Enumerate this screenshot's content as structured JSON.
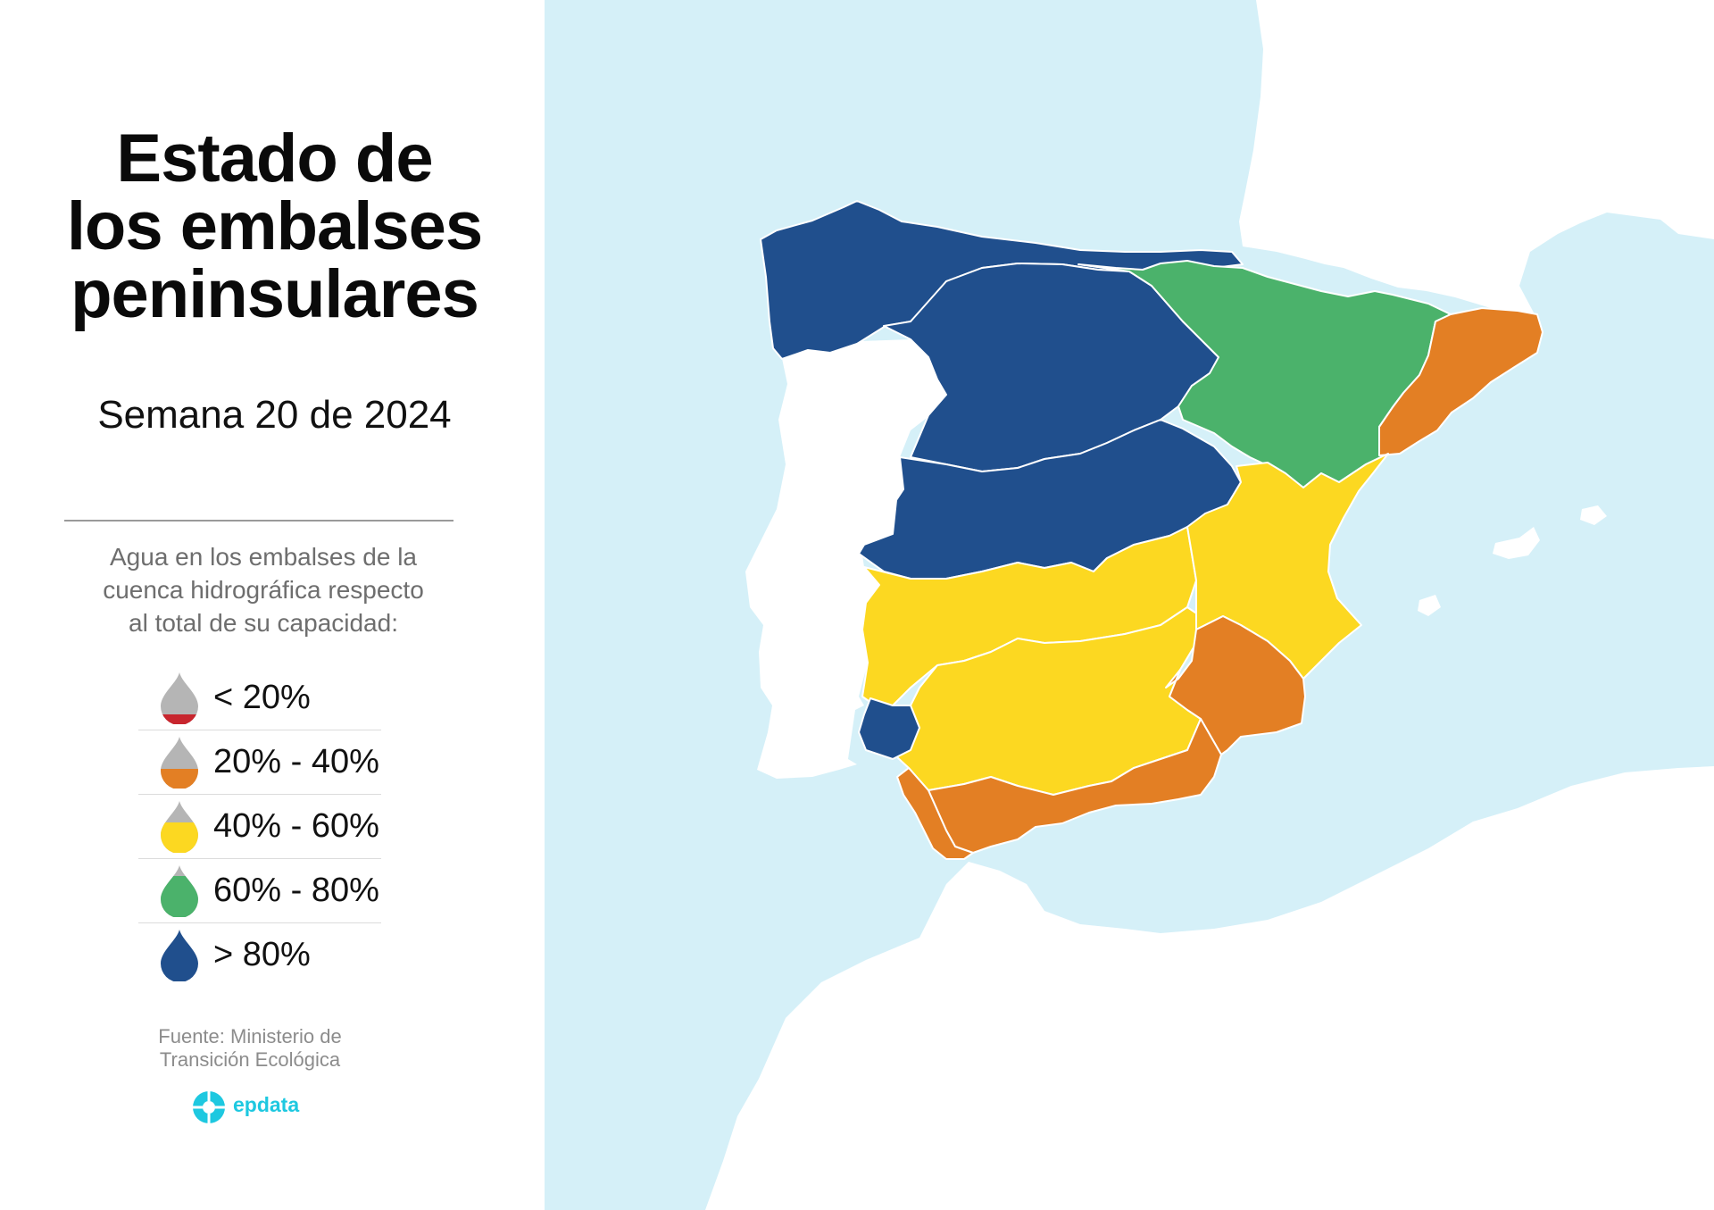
{
  "title_lines": [
    "Estado de",
    "los embalses",
    "peninsulares"
  ],
  "subtitle": "Semana 20 de 2024",
  "legend": {
    "description_lines": [
      "Agua en los embalses de la",
      "cuenca hidrográfica respecto",
      "al total de su capacidad:"
    ],
    "items": [
      {
        "label": "< 20%",
        "color": "#c8262e",
        "fill_level": 0.2
      },
      {
        "label": "20% - 40%",
        "color": "#e37f24",
        "fill_level": 0.4
      },
      {
        "label": "40% - 60%",
        "color": "#fcd821",
        "fill_level": 0.6
      },
      {
        "label": "60% - 80%",
        "color": "#4bb26b",
        "fill_level": 0.8
      },
      {
        "label": "> 80%",
        "color": "#204f8d",
        "fill_level": 1.0
      }
    ]
  },
  "source_lines": [
    "Fuente: Ministerio de",
    "Transición Ecológica"
  ],
  "brand": "epdata",
  "colors": {
    "sea": "#d5f0f8",
    "land": "#ffffff",
    "over_80": "#204f8d",
    "60_80": "#4bb26b",
    "40_60": "#fcd821",
    "20_40": "#e37f24",
    "under_20": "#c8262e",
    "drop_empty": "#b5b5b5",
    "brand": "#1ec8e0"
  },
  "map": {
    "basins": [
      {
        "group": "Cantábrico / Miño-Sil / Galicia Costa",
        "class": "> 80%"
      },
      {
        "group": "Duero",
        "class": "> 80%"
      },
      {
        "group": "Tajo",
        "class": "> 80%"
      },
      {
        "group": "Tinto, Odiel y Piedras",
        "class": "> 80%"
      },
      {
        "group": "Ebro",
        "class": "60% - 80%"
      },
      {
        "group": "Guadiana",
        "class": "40% - 60%"
      },
      {
        "group": "Guadalquivir",
        "class": "40% - 60%"
      },
      {
        "group": "Júcar",
        "class": "40% - 60%"
      },
      {
        "group": "Segura",
        "class": "20% - 40%"
      },
      {
        "group": "Cuencas Internas de Cataluña",
        "class": "20% - 40%"
      },
      {
        "group": "Cuenca Mediterránea Andaluza",
        "class": "20% - 40%"
      },
      {
        "group": "Guadalete y Barbate",
        "class": "20% - 40%"
      }
    ]
  }
}
